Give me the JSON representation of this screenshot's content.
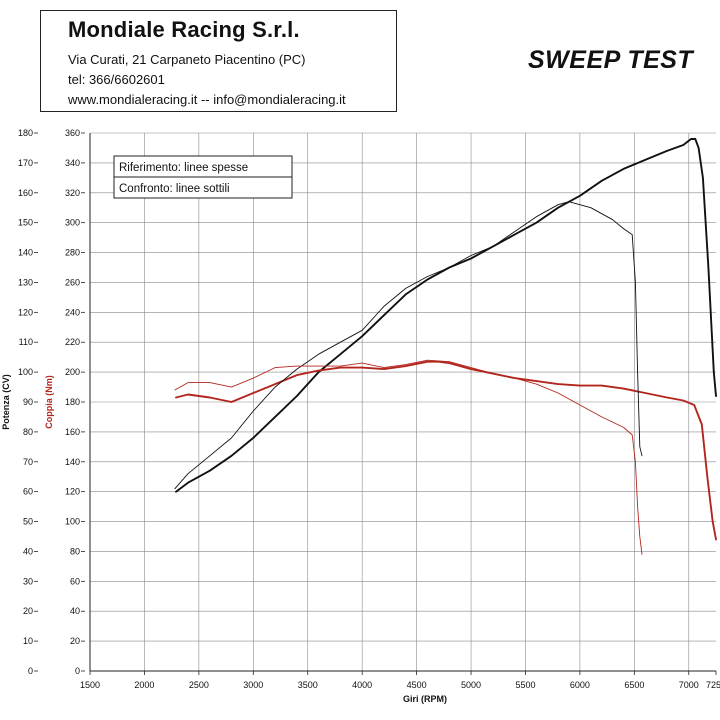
{
  "header": {
    "company": "Mondiale Racing S.r.l.",
    "address": "Via Curati, 21 Carpaneto Piacentino (PC)",
    "phone": "tel: 366/6602601",
    "web": "www.mondialeracing.it -- info@mondialeracing.it"
  },
  "title": "SWEEP TEST",
  "colors": {
    "power": "#111111",
    "torque": "#b3261e",
    "grid": "#8a8a8a"
  },
  "chart_data": {
    "type": "line",
    "xlabel": "Giri (RPM)",
    "ylabel_power": "Potenza (CV)",
    "ylabel_torque": "Coppia (Nm)",
    "xlim": [
      1500,
      7250
    ],
    "x_ticks": [
      "1500",
      "2000",
      "2500",
      "3000",
      "3500",
      "4000",
      "4500",
      "5000",
      "5500",
      "6000",
      "6500",
      "7000",
      "7250"
    ],
    "power_lim": [
      0,
      180
    ],
    "power_ticks": [
      "0",
      "10",
      "20",
      "30",
      "40",
      "50",
      "60",
      "70",
      "80",
      "90",
      "100",
      "110",
      "120",
      "130",
      "140",
      "150",
      "160",
      "170",
      "180"
    ],
    "torque_lim": [
      0,
      360
    ],
    "torque_ticks": [
      "0",
      "20",
      "40",
      "60",
      "80",
      "100",
      "120",
      "140",
      "160",
      "180",
      "200",
      "220",
      "240",
      "260",
      "280",
      "300",
      "320",
      "340",
      "360"
    ],
    "grid": true,
    "legend": {
      "placement": "top-left",
      "entries": [
        "Riferimento: linee spesse",
        "Confronto: linee sottili"
      ]
    },
    "series": [
      {
        "quantity": "power",
        "axis": "left",
        "style": "thick",
        "x": [
          2290,
          2400,
          2600,
          2800,
          3000,
          3200,
          3400,
          3600,
          3800,
          4000,
          4200,
          4400,
          4600,
          4800,
          5000,
          5200,
          5400,
          5600,
          5800,
          6000,
          6200,
          6400,
          6600,
          6800,
          6950,
          7020,
          7060,
          7090,
          7130,
          7180,
          7230,
          7250
        ],
        "y": [
          60,
          63,
          67,
          72,
          78,
          85,
          92,
          100,
          106,
          112,
          119,
          126,
          131,
          135,
          138,
          142,
          146,
          150,
          155,
          159,
          164,
          168,
          171,
          174,
          176,
          178,
          178,
          175,
          165,
          135,
          100,
          92
        ]
      },
      {
        "quantity": "torque",
        "axis": "right",
        "style": "thick",
        "x": [
          2290,
          2400,
          2600,
          2800,
          3000,
          3200,
          3400,
          3600,
          3800,
          4000,
          4200,
          4400,
          4600,
          4700,
          4800,
          5000,
          5200,
          5400,
          5600,
          5800,
          6000,
          6200,
          6400,
          6600,
          6800,
          6950,
          7050,
          7120,
          7170,
          7220,
          7250
        ],
        "y": [
          183,
          185,
          183,
          180,
          186,
          192,
          198,
          201,
          203,
          203,
          202,
          204,
          207,
          207,
          206,
          202,
          199,
          196,
          194,
          192,
          191,
          191,
          189,
          186,
          183,
          181,
          178,
          165,
          130,
          100,
          88
        ]
      },
      {
        "quantity": "power",
        "axis": "left",
        "style": "thin",
        "x": [
          2280,
          2400,
          2600,
          2800,
          3000,
          3200,
          3400,
          3600,
          3800,
          4000,
          4200,
          4400,
          4600,
          4800,
          5000,
          5200,
          5400,
          5600,
          5800,
          5900,
          6000,
          6100,
          6200,
          6300,
          6400,
          6480,
          6510,
          6530,
          6550,
          6570
        ],
        "y": [
          61,
          66,
          72,
          78,
          87,
          95,
          101,
          106,
          110,
          114,
          122,
          128,
          132,
          135,
          139,
          142,
          147,
          152,
          156,
          157,
          156,
          155,
          153,
          151,
          148,
          146,
          130,
          100,
          75,
          72
        ]
      },
      {
        "quantity": "torque",
        "axis": "right",
        "style": "thin",
        "x": [
          2280,
          2400,
          2600,
          2800,
          3000,
          3200,
          3400,
          3600,
          3800,
          4000,
          4200,
          4400,
          4600,
          4800,
          5000,
          5200,
          5400,
          5600,
          5800,
          6000,
          6200,
          6400,
          6480,
          6510,
          6530,
          6550,
          6570
        ],
        "y": [
          188,
          193,
          193,
          190,
          196,
          203,
          204,
          204,
          204,
          206,
          203,
          205,
          208,
          207,
          203,
          199,
          196,
          192,
          186,
          178,
          170,
          163,
          158,
          140,
          110,
          90,
          78
        ]
      }
    ]
  }
}
